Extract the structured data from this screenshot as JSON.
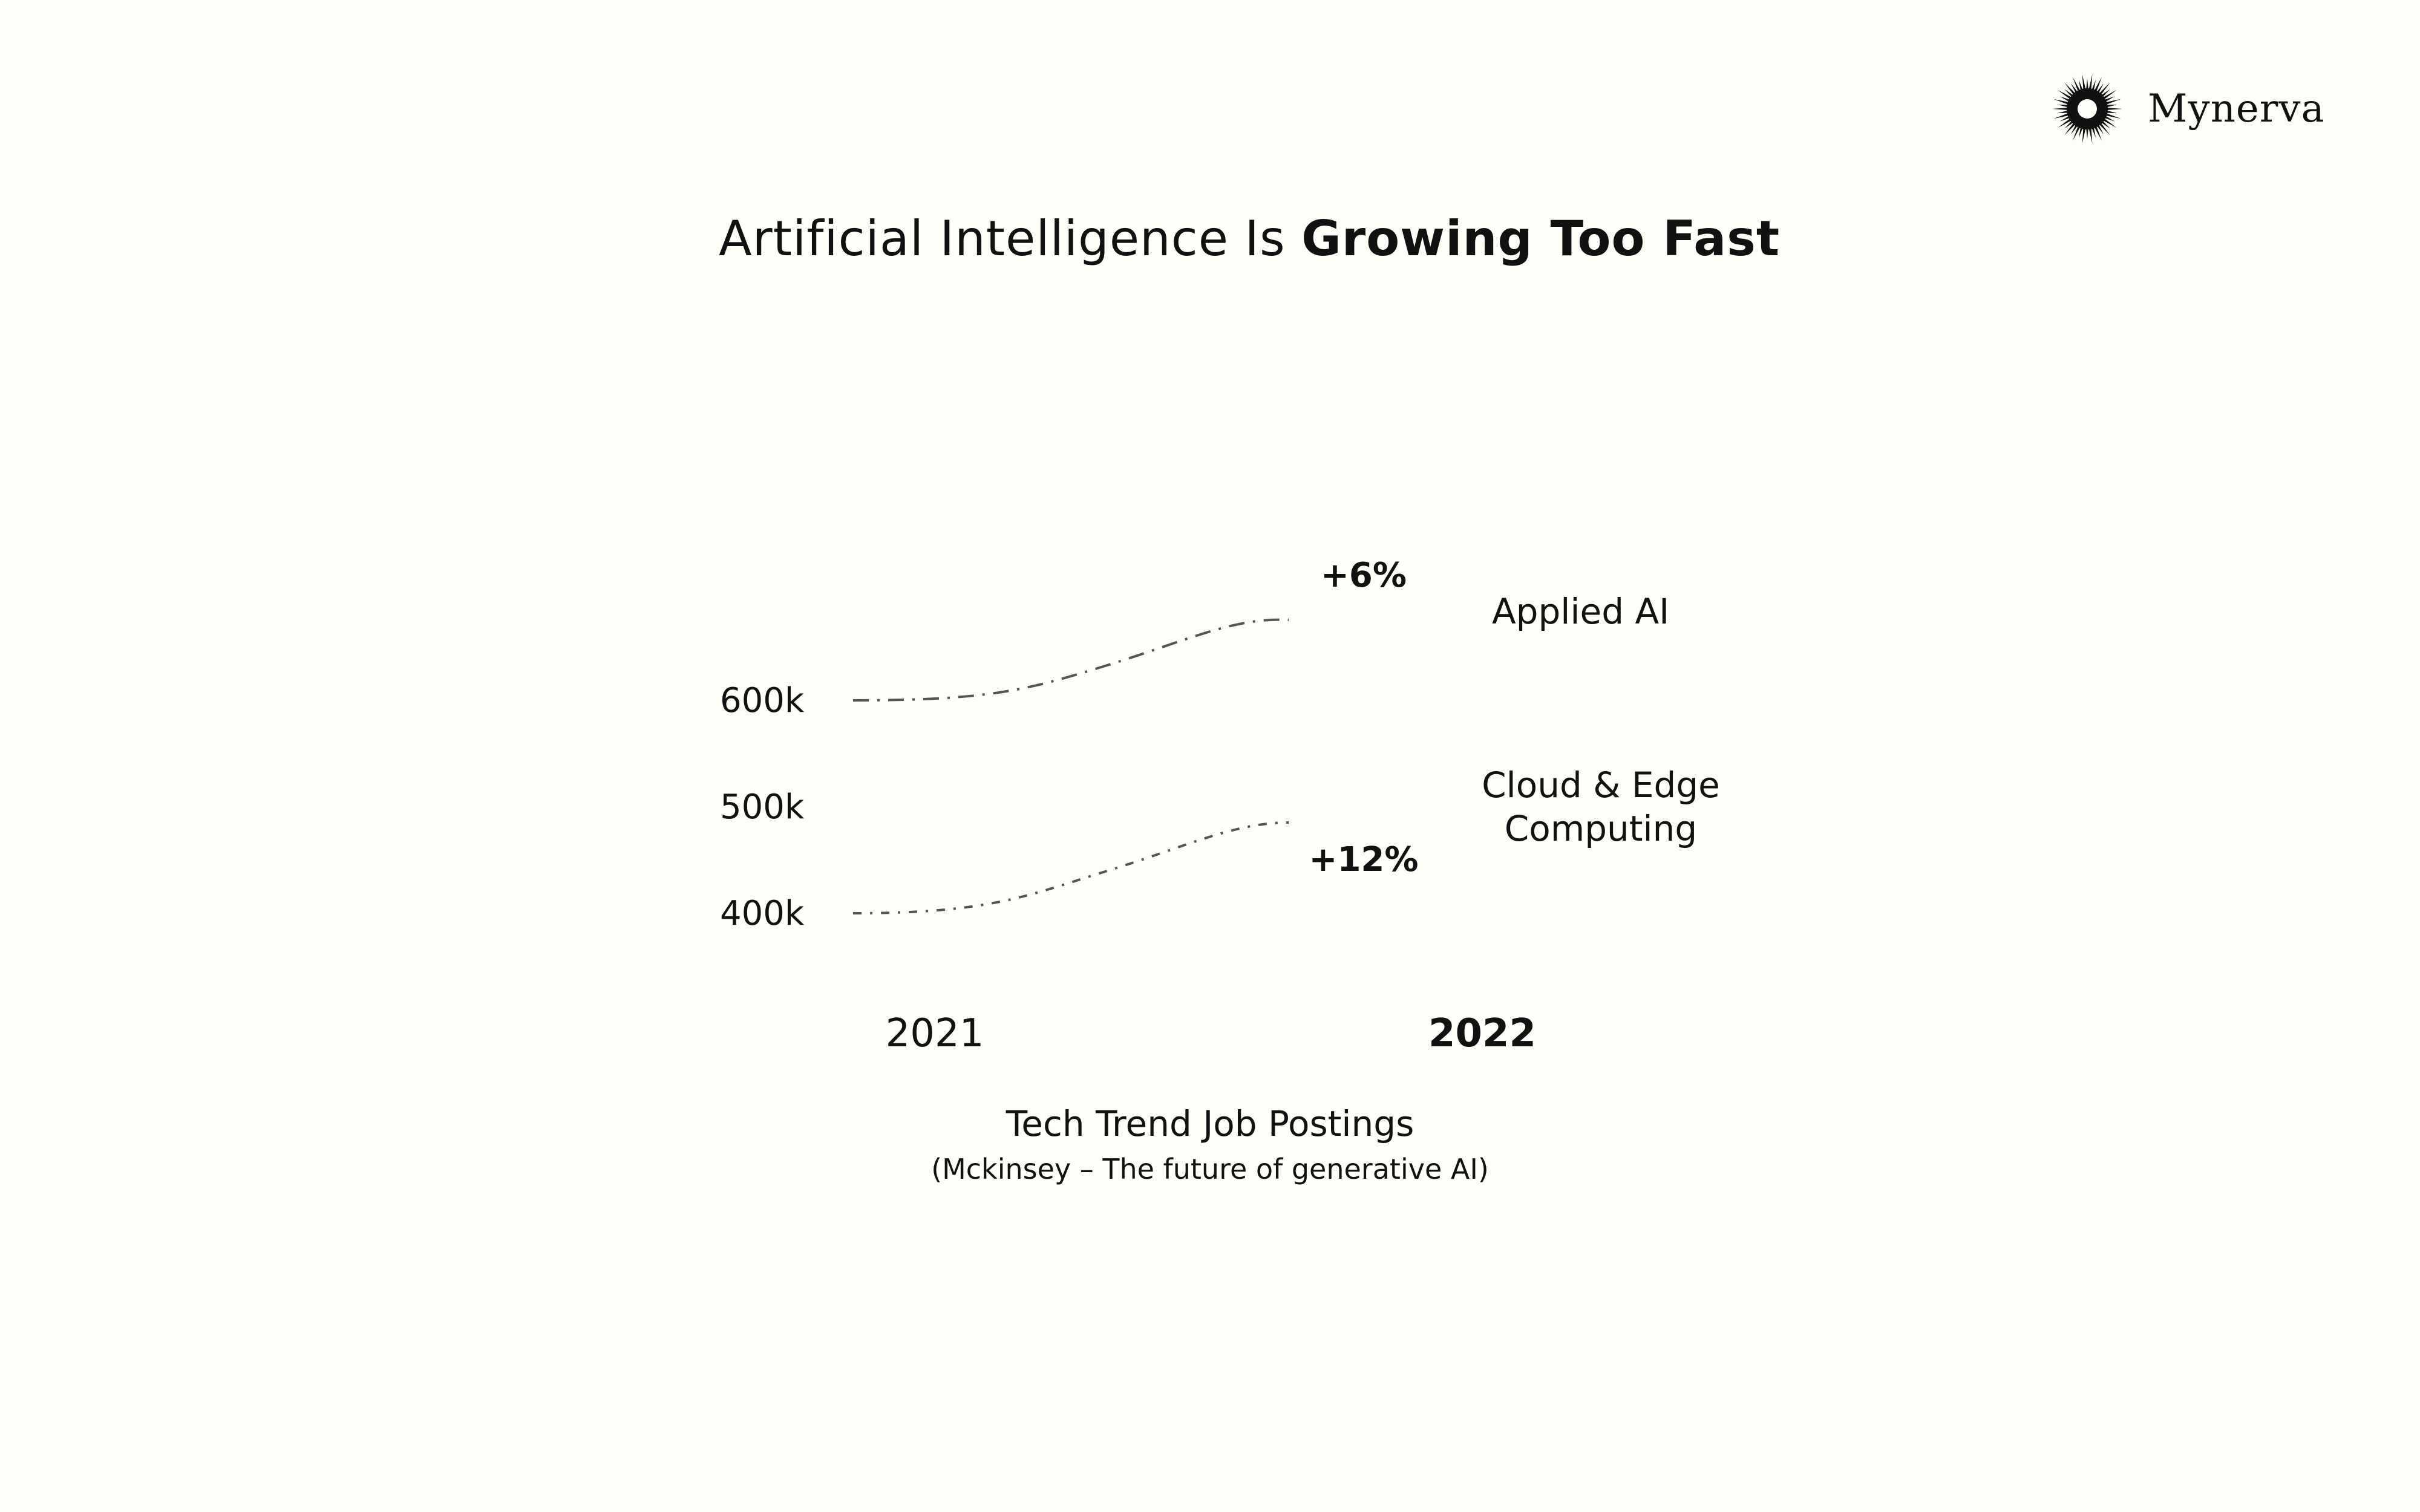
{
  "brand": {
    "name": "Mynerva",
    "logo_icon": "sunburst-icon"
  },
  "headline": {
    "regular": "Artificial Intelligence Is ",
    "bold": "Growing Too Fast"
  },
  "chart_data": {
    "type": "line",
    "x": [
      "2021",
      "2022"
    ],
    "y_ticks": [
      "600k",
      "500k",
      "400k"
    ],
    "series": [
      {
        "name": "Applied AI",
        "change": "+6%"
      },
      {
        "name": "Cloud & Edge Computing",
        "name_lines": [
          "Cloud & Edge",
          "Computing"
        ],
        "change": "+12%"
      }
    ],
    "line_style": "dash-dot",
    "line_color": "#555555",
    "grid": false,
    "legend": "inline-right"
  },
  "caption": {
    "title": "Tech Trend Job Postings",
    "source": "(Mckinsey – The future of generative AI)"
  }
}
